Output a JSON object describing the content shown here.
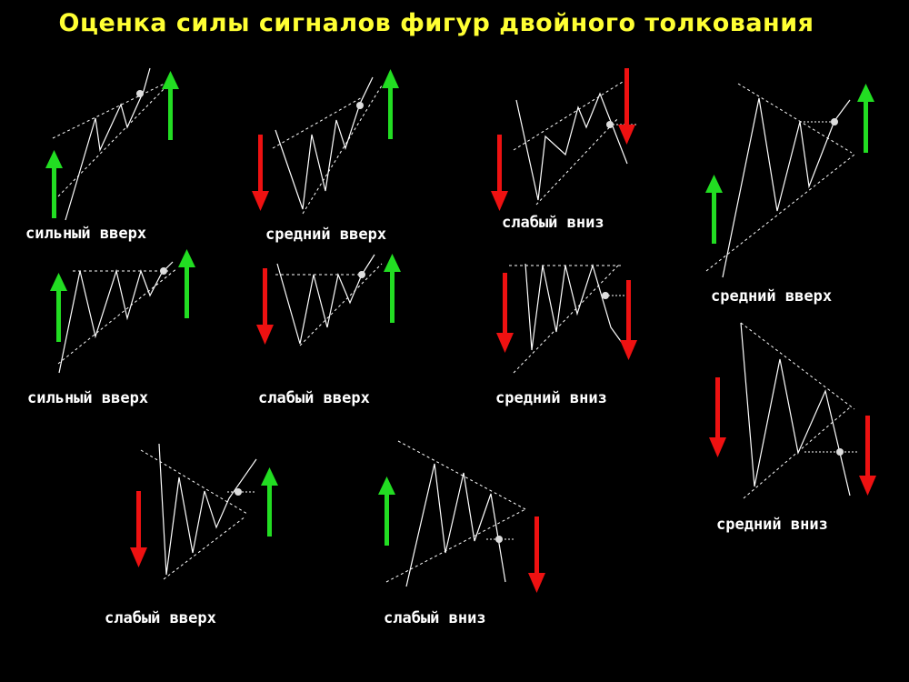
{
  "title": "Оценка силы сигналов фигур двойного толкования",
  "colors": {
    "background": "#000000",
    "title": "#ffff33",
    "up_arrow": "#22dd22",
    "down_arrow": "#ee1111",
    "lines": "#ffffff"
  },
  "panels": [
    {
      "label": "сильный вверх"
    },
    {
      "label": "средний вверх"
    },
    {
      "label": "слабый вниз"
    },
    {
      "label": "средний вверх"
    },
    {
      "label": "сильный вверх"
    },
    {
      "label": "слабый вверх"
    },
    {
      "label": "средний вниз"
    },
    {
      "label": "средний вниз"
    },
    {
      "label": "слабый вверх"
    },
    {
      "label": "слабый вниз"
    }
  ]
}
